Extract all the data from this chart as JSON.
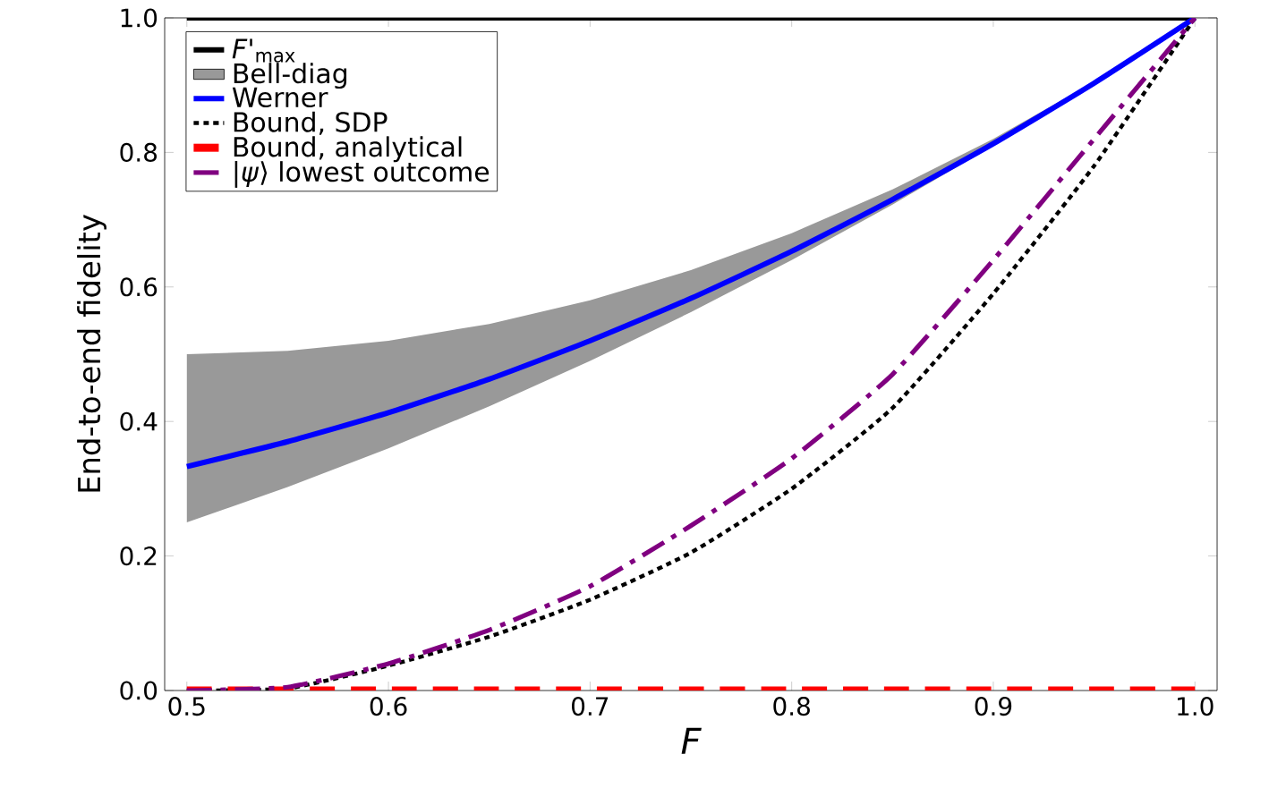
{
  "chart_data": {
    "type": "line",
    "xlabel": "F",
    "ylabel": "End-to-end fidelity",
    "x": [
      0.5,
      0.55,
      0.6,
      0.65,
      0.7,
      0.75,
      0.8,
      0.85,
      0.9,
      0.95,
      1.0
    ],
    "series": [
      {
        "name": "*F*'$_{max}$",
        "color": "#000000",
        "line_style": "solid",
        "values": [
          1,
          1,
          1,
          1,
          1,
          1,
          1,
          1,
          1,
          1,
          1
        ]
      },
      {
        "name": "Bell-diag",
        "type": "area",
        "color": "#999999",
        "values": [
          null,
          null,
          null,
          null,
          null,
          null,
          null,
          null,
          null,
          null,
          null
        ],
        "lower": [
          0.25,
          0.3025,
          0.36,
          0.4225,
          0.49,
          0.5625,
          0.64,
          0.7225,
          0.81,
          0.9025,
          1.0
        ],
        "upper": [
          0.5,
          0.505,
          0.52,
          0.545,
          0.58,
          0.625,
          0.68,
          0.745,
          0.82,
          0.905,
          1.0
        ]
      },
      {
        "name": "Werner",
        "color": "#0000ff",
        "line_style": "solid",
        "values": [
          0.333,
          0.37,
          0.413,
          0.463,
          0.52,
          0.583,
          0.653,
          0.73,
          0.813,
          0.903,
          1.0
        ]
      },
      {
        "name": "Bound, SDP",
        "color": "#000000",
        "line_style": "dotted",
        "values": [
          0,
          0.003,
          0.037,
          0.08,
          0.135,
          0.205,
          0.3,
          0.42,
          0.59,
          0.78,
          1.0
        ]
      },
      {
        "name": "Bound, analytical",
        "color": "#ff0000",
        "line_style": "dashed",
        "values": [
          0,
          0,
          0,
          0,
          0,
          0,
          0,
          0,
          0,
          0,
          0
        ]
      },
      {
        "name": "|*ψ*⟩ lowest outcome",
        "color": "#800080",
        "line_style": "dashdot",
        "values": [
          0,
          0.005,
          0.04,
          0.09,
          0.155,
          0.245,
          0.345,
          0.47,
          0.64,
          0.82,
          1.0
        ]
      }
    ],
    "xlim": [
      0.489,
      1.011
    ],
    "ylim": [
      0,
      1
    ],
    "xticks": [
      0.5,
      0.6,
      0.7,
      0.8,
      0.9,
      {
        "value": 1.0,
        "label": "1.0"
      }
    ],
    "yticks": [
      {
        "value": 0.0,
        "label": "0.0"
      },
      0.2,
      0.4,
      0.6,
      0.8,
      {
        "value": 1.0,
        "label": "1.0"
      }
    ],
    "legend": "top left",
    "grid": false,
    "marker": "none"
  }
}
